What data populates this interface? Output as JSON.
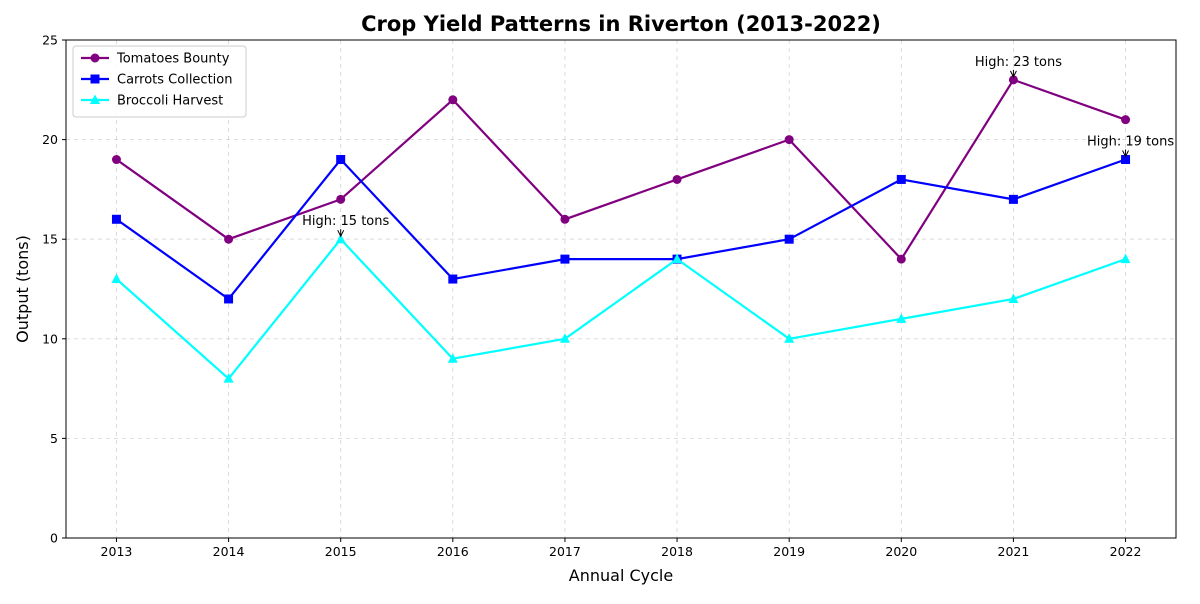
{
  "chart_data": {
    "type": "line",
    "title": "Crop Yield Patterns in Riverton (2013-2022)",
    "xlabel": "Annual Cycle",
    "ylabel": "Output (tons)",
    "x": [
      2013,
      2014,
      2015,
      2016,
      2017,
      2018,
      2019,
      2020,
      2021,
      2022
    ],
    "xlim": [
      2012.55,
      2022.45
    ],
    "ylim": [
      0,
      25
    ],
    "yticks": [
      0,
      5,
      10,
      15,
      20,
      25
    ],
    "grid": true,
    "legend_position": "top-left",
    "series": [
      {
        "name": "Tomatoes Bounty",
        "color": "#800080",
        "marker": "circle",
        "values": [
          19,
          15,
          17,
          22,
          16,
          18,
          20,
          14,
          23,
          21
        ]
      },
      {
        "name": "Carrots Collection",
        "color": "#0000ff",
        "marker": "square",
        "values": [
          16,
          12,
          19,
          13,
          14,
          14,
          15,
          18,
          17,
          19
        ]
      },
      {
        "name": "Broccoli Harvest",
        "color": "#00ffff",
        "marker": "triangle",
        "values": [
          13,
          8,
          15,
          9,
          10,
          14,
          10,
          11,
          12,
          14
        ]
      }
    ],
    "annotations": [
      {
        "text": "High: 23 tons",
        "x": 2021,
        "y": 23
      },
      {
        "text": "High: 19 tons",
        "x": 2022,
        "y": 19
      },
      {
        "text": "High: 15 tons",
        "x": 2015,
        "y": 15
      }
    ]
  }
}
